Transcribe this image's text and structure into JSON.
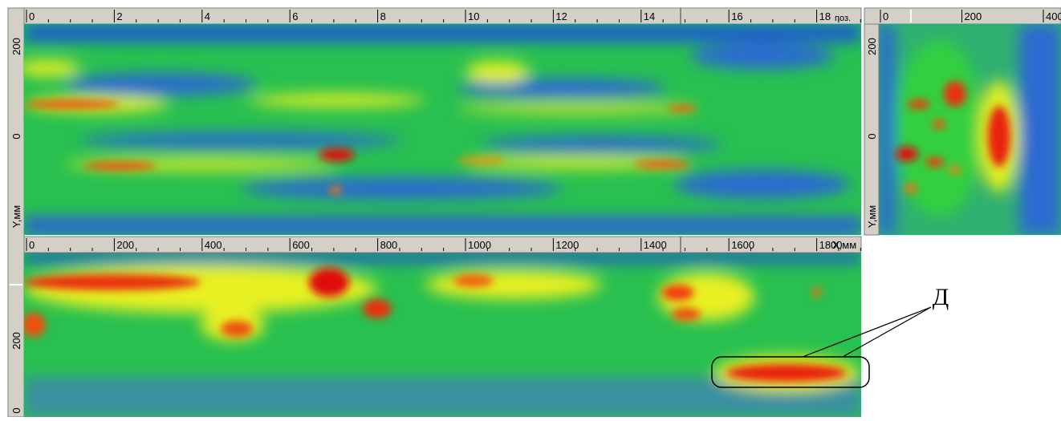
{
  "top_panel": {
    "x_ticks": [
      "0",
      "2",
      "4",
      "6",
      "8",
      "10",
      "12",
      "14",
      "16",
      "18"
    ],
    "x_unit": "поз.",
    "y_ticks": [
      "200",
      "0"
    ],
    "y_label": "Y,мм"
  },
  "side_panel": {
    "x_ticks": [
      "0",
      "200",
      "400"
    ],
    "y_ticks": [
      "200",
      "0"
    ],
    "y_label": "Y,мм"
  },
  "bottom_panel": {
    "x_ticks": [
      "0",
      "200",
      "400",
      "600",
      "800",
      "1000",
      "1200",
      "1400",
      "1600",
      "1800"
    ],
    "x_unit": "X,мм",
    "y_ticks": [
      "200",
      "0"
    ]
  },
  "annotation": {
    "label": "Д"
  }
}
